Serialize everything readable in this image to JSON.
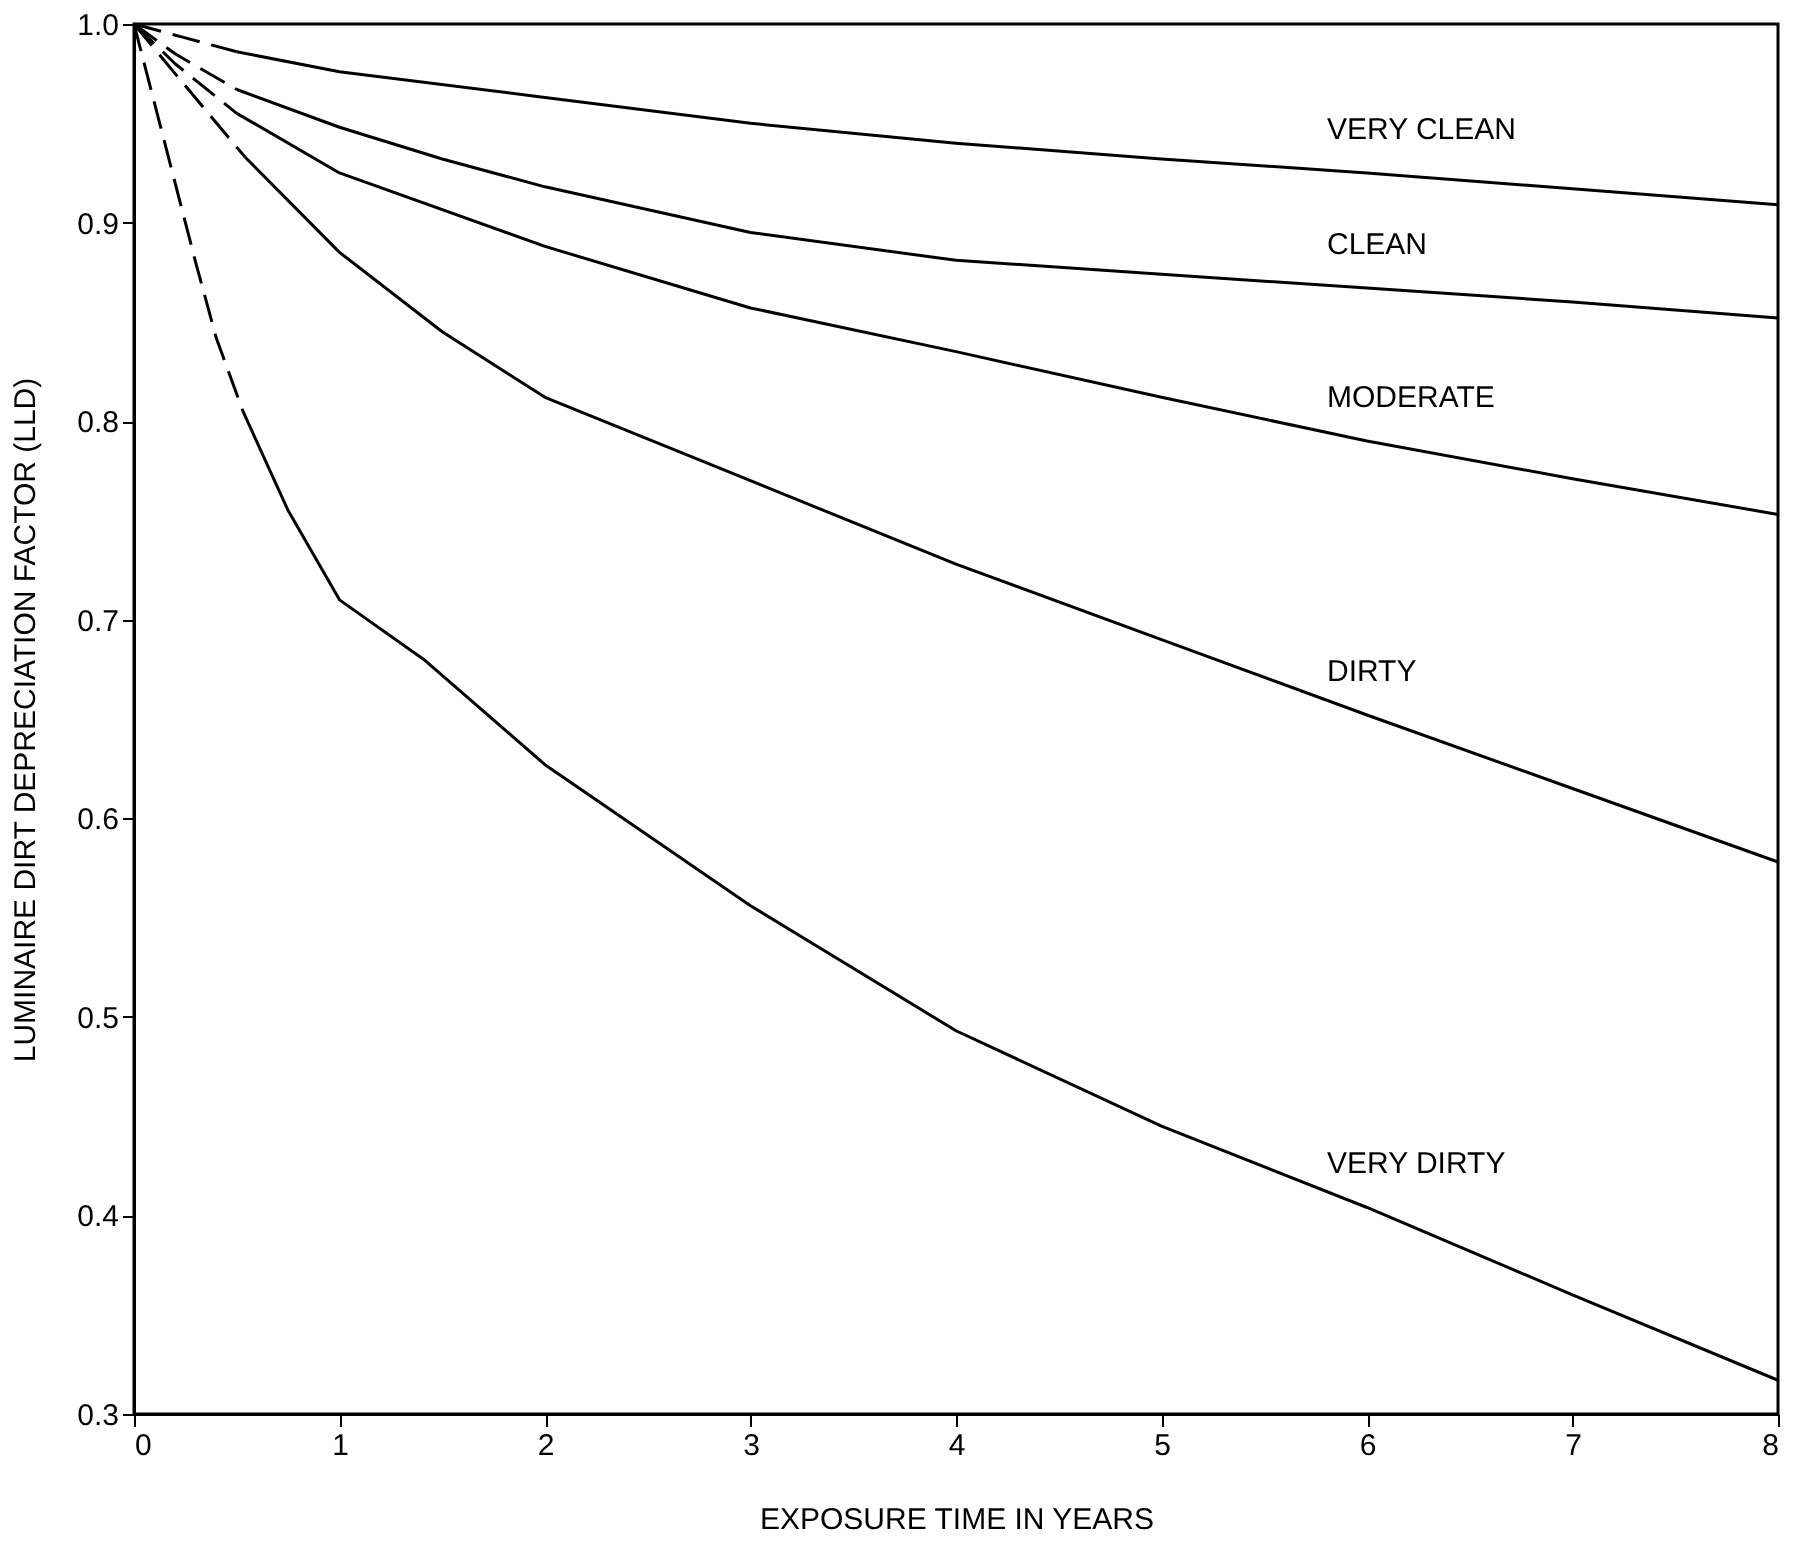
{
  "chart_data": {
    "type": "line",
    "xlabel": "EXPOSURE TIME IN YEARS",
    "ylabel": "LUMINAIRE DIRT DEPRECIATION FACTOR (LLD)",
    "xlim": [
      0,
      8
    ],
    "xticks": [
      0,
      1,
      2,
      3,
      4,
      5,
      6,
      7,
      8
    ],
    "ylim": [
      0.3,
      1.0
    ],
    "yticks": [
      0.3,
      0.4,
      0.5,
      0.6,
      0.7,
      0.8,
      0.9,
      {
        "value": 1.0,
        "label": "1.0"
      }
    ],
    "grid": false,
    "marker": "none",
    "series": [
      {
        "color": "#000000",
        "line_style": "dashed",
        "x": [
          0,
          0.25,
          0.5
        ],
        "values": [
          1.0,
          0.993,
          0.986
        ]
      },
      {
        "name": "VERY CLEAN",
        "color": "#000000",
        "line_style": "solid",
        "x": [
          0.5,
          1,
          2,
          3,
          4,
          5,
          6,
          7,
          8
        ],
        "values": [
          0.986,
          0.976,
          0.963,
          0.95,
          0.94,
          0.932,
          0.925,
          0.917,
          0.909
        ]
      },
      {
        "color": "#000000",
        "line_style": "dashed",
        "x": [
          0,
          0.2,
          0.5
        ],
        "values": [
          1.0,
          0.985,
          0.967
        ]
      },
      {
        "name": "CLEAN",
        "color": "#000000",
        "line_style": "solid",
        "x": [
          0.5,
          1,
          1.5,
          2,
          3,
          4,
          5,
          6,
          7,
          8
        ],
        "values": [
          0.967,
          0.948,
          0.932,
          0.918,
          0.895,
          0.881,
          0.874,
          0.867,
          0.86,
          0.852
        ]
      },
      {
        "color": "#000000",
        "line_style": "dashed",
        "x": [
          0,
          0.2,
          0.5
        ],
        "values": [
          1.0,
          0.98,
          0.955
        ]
      },
      {
        "name": "MODERATE",
        "color": "#000000",
        "line_style": "solid",
        "x": [
          0.5,
          1,
          2,
          3,
          4,
          5,
          6,
          7,
          8
        ],
        "values": [
          0.955,
          0.925,
          0.888,
          0.857,
          0.835,
          0.812,
          0.79,
          0.771,
          0.753
        ]
      },
      {
        "color": "#000000",
        "line_style": "dashed",
        "x": [
          0,
          0.2,
          0.54
        ],
        "values": [
          1.0,
          0.975,
          0.933
        ]
      },
      {
        "name": "DIRTY",
        "color": "#000000",
        "line_style": "solid",
        "x": [
          0.54,
          1,
          1.5,
          2,
          3,
          4,
          5,
          6,
          7,
          8
        ],
        "values": [
          0.933,
          0.885,
          0.845,
          0.812,
          0.77,
          0.728,
          0.69,
          0.652,
          0.615,
          0.578
        ]
      },
      {
        "color": "#000000",
        "line_style": "dashed",
        "x": [
          0,
          0.1,
          0.2,
          0.3,
          0.4,
          0.53
        ],
        "values": [
          1.0,
          0.96,
          0.92,
          0.88,
          0.842,
          0.805
        ]
      },
      {
        "name": "VERY DIRTY",
        "color": "#000000",
        "line_style": "solid",
        "x": [
          0.53,
          0.75,
          1,
          1.41,
          2,
          3,
          4,
          5,
          6,
          7,
          8
        ],
        "values": [
          0.805,
          0.755,
          0.71,
          0.68,
          0.627,
          0.556,
          0.493,
          0.445,
          0.404,
          0.36,
          0.317
        ]
      }
    ]
  }
}
